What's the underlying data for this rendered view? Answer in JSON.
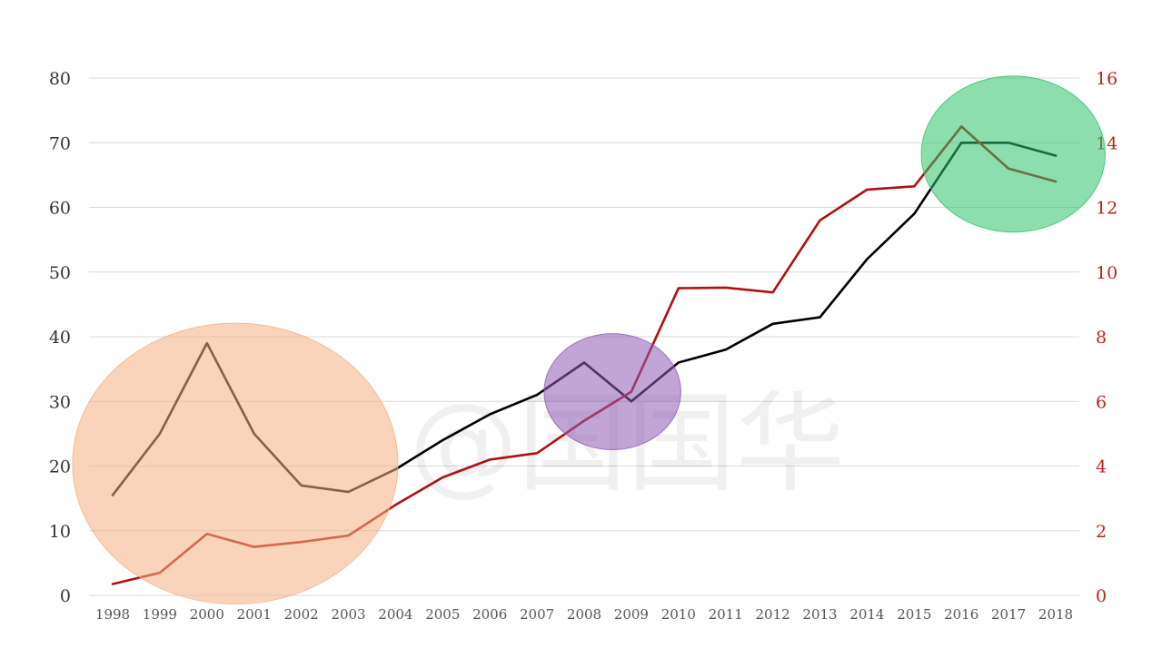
{
  "chart_data": {
    "type": "line",
    "title": "",
    "xlabel": "",
    "ylabel": "",
    "y2label": "",
    "x": [
      "1998",
      "1999",
      "2000",
      "2001",
      "2002",
      "2003",
      "2004",
      "2005",
      "2006",
      "2007",
      "2008",
      "2009",
      "2010",
      "2011",
      "2012",
      "2013",
      "2014",
      "2015",
      "2016",
      "2017",
      "2018"
    ],
    "ylim": [
      0,
      80
    ],
    "y_ticks": [
      "0",
      "10",
      "20",
      "30",
      "40",
      "50",
      "60",
      "70",
      "80"
    ],
    "y2lim": [
      0,
      16
    ],
    "y2_ticks": [
      "0",
      "2",
      "4",
      "6",
      "8",
      "10",
      "12",
      "14",
      "16"
    ],
    "grid": true,
    "legend": "none",
    "series": [
      {
        "axis": "left",
        "color": "#000000",
        "values": [
          15.5,
          25,
          39,
          25,
          17,
          16,
          19.5,
          24,
          28,
          31,
          36,
          30,
          36,
          38,
          42,
          43,
          52,
          59,
          70,
          70,
          68
        ]
      },
      {
        "axis": "right",
        "color": "#b01010",
        "values": [
          0.35,
          0.7,
          1.9,
          1.5,
          1.65,
          1.85,
          2.8,
          3.65,
          4.2,
          4.4,
          5.4,
          6.3,
          9.5,
          9.52,
          9.37,
          11.6,
          12.55,
          12.65,
          14.5,
          13.2,
          12.8
        ]
      }
    ],
    "highlights": [
      {
        "from": "1998",
        "to": "2003",
        "color": "#f4b183"
      },
      {
        "from": "2008",
        "to": "2009",
        "color": "#8e5bb5"
      },
      {
        "from": "2016",
        "to": "2018",
        "color": "#2ec36a"
      }
    ],
    "watermark": "@国国华"
  }
}
